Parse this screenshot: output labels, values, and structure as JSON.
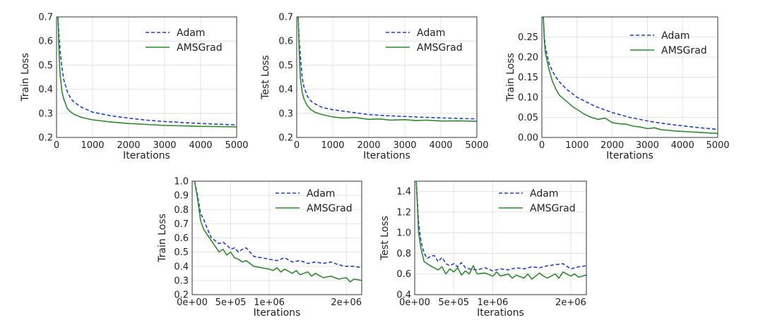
{
  "chart_data": [
    {
      "type": "line",
      "title": "",
      "xlabel": "Iterations",
      "ylabel": "Train Loss",
      "xlim": [
        0,
        5000
      ],
      "ylim": [
        0.2,
        0.7
      ],
      "xticks": [
        0,
        1000,
        2000,
        3000,
        4000,
        5000
      ],
      "xtick_labels": [
        "0",
        "1000",
        "2000",
        "3000",
        "4000",
        "5000"
      ],
      "yticks": [
        0.2,
        0.3,
        0.4,
        0.5,
        0.6,
        0.7
      ],
      "ytick_labels": [
        "0.2",
        "0.3",
        "0.4",
        "0.5",
        "0.6",
        "0.7"
      ],
      "grid": true,
      "legend": "top-right",
      "series": [
        {
          "name": "Adam",
          "color": "#1f3fd6",
          "style": "dashed",
          "x": [
            40,
            70,
            100,
            150,
            200,
            300,
            400,
            500,
            700,
            1000,
            1500,
            2000,
            2500,
            3000,
            3500,
            4000,
            4500,
            5000
          ],
          "y": [
            0.7,
            0.62,
            0.56,
            0.49,
            0.44,
            0.39,
            0.36,
            0.345,
            0.325,
            0.305,
            0.29,
            0.28,
            0.272,
            0.266,
            0.262,
            0.258,
            0.255,
            0.252
          ]
        },
        {
          "name": "AMSGrad",
          "color": "#2e8b2e",
          "style": "solid",
          "x": [
            40,
            70,
            100,
            150,
            200,
            300,
            400,
            500,
            700,
            1000,
            1500,
            2000,
            2500,
            3000,
            3500,
            4000,
            4500,
            5000
          ],
          "y": [
            0.7,
            0.55,
            0.46,
            0.39,
            0.36,
            0.32,
            0.305,
            0.295,
            0.283,
            0.273,
            0.264,
            0.258,
            0.254,
            0.25,
            0.248,
            0.246,
            0.245,
            0.244
          ]
        }
      ]
    },
    {
      "type": "line",
      "title": "",
      "xlabel": "Iterations",
      "ylabel": "Test Loss",
      "xlim": [
        0,
        5000
      ],
      "ylim": [
        0.2,
        0.7
      ],
      "xticks": [
        0,
        1000,
        2000,
        3000,
        4000,
        5000
      ],
      "xtick_labels": [
        "0",
        "1000",
        "2000",
        "3000",
        "4000",
        "5000"
      ],
      "yticks": [
        0.2,
        0.3,
        0.4,
        0.5,
        0.6,
        0.7
      ],
      "ytick_labels": [
        "0.2",
        "0.3",
        "0.4",
        "0.5",
        "0.6",
        "0.7"
      ],
      "grid": true,
      "legend": "top-right",
      "series": [
        {
          "name": "Adam",
          "color": "#1f3fd6",
          "style": "dashed",
          "x": [
            40,
            70,
            100,
            150,
            200,
            300,
            400,
            500,
            700,
            1000,
            1500,
            2000,
            2500,
            3000,
            3500,
            4000,
            4500,
            5000
          ],
          "y": [
            0.7,
            0.6,
            0.54,
            0.45,
            0.41,
            0.37,
            0.35,
            0.34,
            0.325,
            0.315,
            0.305,
            0.295,
            0.29,
            0.287,
            0.284,
            0.281,
            0.279,
            0.277
          ]
        },
        {
          "name": "AMSGrad",
          "color": "#2e8b2e",
          "style": "solid",
          "x": [
            40,
            70,
            100,
            150,
            200,
            300,
            400,
            500,
            700,
            1000,
            1300,
            1600,
            2000,
            2300,
            2600,
            3000,
            3300,
            3600,
            4000,
            4500,
            5000
          ],
          "y": [
            0.7,
            0.55,
            0.45,
            0.39,
            0.36,
            0.33,
            0.315,
            0.305,
            0.295,
            0.285,
            0.28,
            0.283,
            0.275,
            0.277,
            0.272,
            0.274,
            0.27,
            0.272,
            0.268,
            0.269,
            0.267
          ]
        }
      ]
    },
    {
      "type": "line",
      "title": "",
      "xlabel": "Iterations",
      "ylabel": "Train Loss",
      "xlim": [
        0,
        5000
      ],
      "ylim": [
        0.0,
        0.3
      ],
      "xticks": [
        0,
        1000,
        2000,
        3000,
        4000,
        5000
      ],
      "xtick_labels": [
        "0",
        "1000",
        "2000",
        "3000",
        "4000",
        "5000"
      ],
      "yticks": [
        0.0,
        0.05,
        0.1,
        0.15,
        0.2,
        0.25
      ],
      "ytick_labels": [
        "0.00",
        "0.05",
        "0.10",
        "0.15",
        "0.20",
        "0.25"
      ],
      "grid": true,
      "legend": "top-right",
      "series": [
        {
          "name": "Adam",
          "color": "#1f3fd6",
          "style": "dashed",
          "x": [
            40,
            70,
            100,
            150,
            200,
            300,
            400,
            500,
            700,
            1000,
            1500,
            2000,
            2500,
            3000,
            3500,
            4000,
            4500,
            5000
          ],
          "y": [
            0.3,
            0.25,
            0.225,
            0.205,
            0.185,
            0.165,
            0.15,
            0.138,
            0.12,
            0.1,
            0.078,
            0.062,
            0.05,
            0.041,
            0.034,
            0.029,
            0.024,
            0.02
          ]
        },
        {
          "name": "AMSGrad",
          "color": "#2e8b2e",
          "style": "solid",
          "x": [
            40,
            70,
            100,
            150,
            200,
            300,
            400,
            500,
            700,
            900,
            1000,
            1200,
            1400,
            1600,
            1800,
            2000,
            2200,
            2400,
            2600,
            2800,
            3000,
            3200,
            3400,
            3600,
            3800,
            4000,
            4200,
            4400,
            4600,
            4800,
            5000
          ],
          "y": [
            0.3,
            0.24,
            0.21,
            0.19,
            0.17,
            0.14,
            0.12,
            0.105,
            0.09,
            0.075,
            0.07,
            0.058,
            0.05,
            0.045,
            0.048,
            0.037,
            0.034,
            0.033,
            0.028,
            0.026,
            0.022,
            0.024,
            0.019,
            0.018,
            0.016,
            0.015,
            0.014,
            0.013,
            0.012,
            0.011,
            0.01
          ]
        }
      ]
    },
    {
      "type": "line",
      "title": "",
      "xlabel": "Iterations",
      "ylabel": "Train Loss",
      "xlim": [
        0,
        2200000
      ],
      "ylim": [
        0.2,
        1.0
      ],
      "xticks": [
        0,
        500000,
        1000000,
        2000000
      ],
      "xtick_labels": [
        "0e+00",
        "5e+05",
        "1e+06",
        "2e+06"
      ],
      "yticks": [
        0.2,
        0.3,
        0.4,
        0.5,
        0.6,
        0.7,
        0.8,
        0.9,
        1.0
      ],
      "ytick_labels": [
        "0.2",
        "0.3",
        "0.4",
        "0.5",
        "0.6",
        "0.7",
        "0.8",
        "0.9",
        "1.0"
      ],
      "grid": true,
      "legend": "top-right",
      "series": [
        {
          "name": "Adam",
          "color": "#1f3fd6",
          "style": "dashed",
          "x": [
            30000,
            70000,
            110000,
            150000,
            200000,
            250000,
            300000,
            350000,
            400000,
            450000,
            500000,
            550000,
            600000,
            650000,
            700000,
            800000,
            900000,
            1000000,
            1100000,
            1200000,
            1300000,
            1400000,
            1500000,
            1600000,
            1700000,
            1800000,
            1900000,
            2000000,
            2100000,
            2200000
          ],
          "y": [
            1.0,
            0.9,
            0.77,
            0.73,
            0.66,
            0.6,
            0.58,
            0.56,
            0.57,
            0.55,
            0.52,
            0.53,
            0.5,
            0.52,
            0.53,
            0.47,
            0.46,
            0.45,
            0.44,
            0.46,
            0.43,
            0.44,
            0.42,
            0.43,
            0.42,
            0.43,
            0.41,
            0.4,
            0.4,
            0.39
          ]
        },
        {
          "name": "AMSGrad",
          "color": "#2e8b2e",
          "style": "solid",
          "x": [
            30000,
            70000,
            110000,
            150000,
            200000,
            250000,
            300000,
            350000,
            400000,
            450000,
            500000,
            550000,
            600000,
            650000,
            700000,
            750000,
            800000,
            900000,
            1000000,
            1050000,
            1100000,
            1150000,
            1200000,
            1300000,
            1350000,
            1400000,
            1500000,
            1550000,
            1600000,
            1700000,
            1800000,
            1900000,
            2000000,
            2050000,
            2100000,
            2200000
          ],
          "y": [
            1.0,
            0.88,
            0.72,
            0.66,
            0.62,
            0.58,
            0.54,
            0.5,
            0.52,
            0.48,
            0.5,
            0.46,
            0.45,
            0.43,
            0.44,
            0.42,
            0.4,
            0.39,
            0.38,
            0.37,
            0.39,
            0.36,
            0.38,
            0.35,
            0.37,
            0.34,
            0.36,
            0.33,
            0.35,
            0.32,
            0.33,
            0.31,
            0.32,
            0.29,
            0.31,
            0.3
          ]
        }
      ]
    },
    {
      "type": "line",
      "title": "",
      "xlabel": "Iterations",
      "ylabel": "Test Loss",
      "xlim": [
        0,
        2200000
      ],
      "ylim": [
        0.4,
        1.5
      ],
      "xticks": [
        0,
        500000,
        1000000,
        2000000
      ],
      "xtick_labels": [
        "0e+00",
        "5e+05",
        "1e+06",
        "2e+06"
      ],
      "yticks": [
        0.4,
        0.6,
        0.8,
        1.0,
        1.2,
        1.4
      ],
      "ytick_labels": [
        "0.4",
        "0.6",
        "0.8",
        "1.0",
        "1.2",
        "1.4"
      ],
      "grid": true,
      "legend": "top-right",
      "series": [
        {
          "name": "Adam",
          "color": "#1f3fd6",
          "style": "dashed",
          "x": [
            20000,
            50000,
            80000,
            120000,
            160000,
            200000,
            250000,
            300000,
            350000,
            400000,
            450000,
            500000,
            550000,
            600000,
            650000,
            700000,
            800000,
            900000,
            1000000,
            1100000,
            1200000,
            1300000,
            1400000,
            1500000,
            1600000,
            1700000,
            1800000,
            1900000,
            2000000,
            2100000,
            2200000
          ],
          "y": [
            1.5,
            1.1,
            0.92,
            0.8,
            0.75,
            0.77,
            0.78,
            0.72,
            0.76,
            0.7,
            0.68,
            0.7,
            0.67,
            0.71,
            0.66,
            0.65,
            0.64,
            0.66,
            0.63,
            0.65,
            0.64,
            0.66,
            0.65,
            0.67,
            0.66,
            0.68,
            0.69,
            0.7,
            0.65,
            0.67,
            0.68
          ]
        },
        {
          "name": "AMSGrad",
          "color": "#2e8b2e",
          "style": "solid",
          "x": [
            20000,
            50000,
            80000,
            120000,
            160000,
            200000,
            250000,
            300000,
            350000,
            400000,
            450000,
            500000,
            550000,
            600000,
            650000,
            700000,
            750000,
            800000,
            900000,
            1000000,
            1050000,
            1100000,
            1200000,
            1250000,
            1300000,
            1400000,
            1450000,
            1500000,
            1600000,
            1650000,
            1700000,
            1800000,
            1850000,
            1900000,
            2000000,
            2050000,
            2100000,
            2200000
          ],
          "y": [
            1.5,
            1.0,
            0.85,
            0.72,
            0.7,
            0.68,
            0.66,
            0.64,
            0.67,
            0.6,
            0.65,
            0.62,
            0.66,
            0.59,
            0.63,
            0.6,
            0.68,
            0.6,
            0.61,
            0.58,
            0.62,
            0.58,
            0.6,
            0.56,
            0.59,
            0.56,
            0.6,
            0.55,
            0.61,
            0.58,
            0.56,
            0.6,
            0.56,
            0.62,
            0.58,
            0.6,
            0.57,
            0.59
          ]
        }
      ]
    }
  ]
}
